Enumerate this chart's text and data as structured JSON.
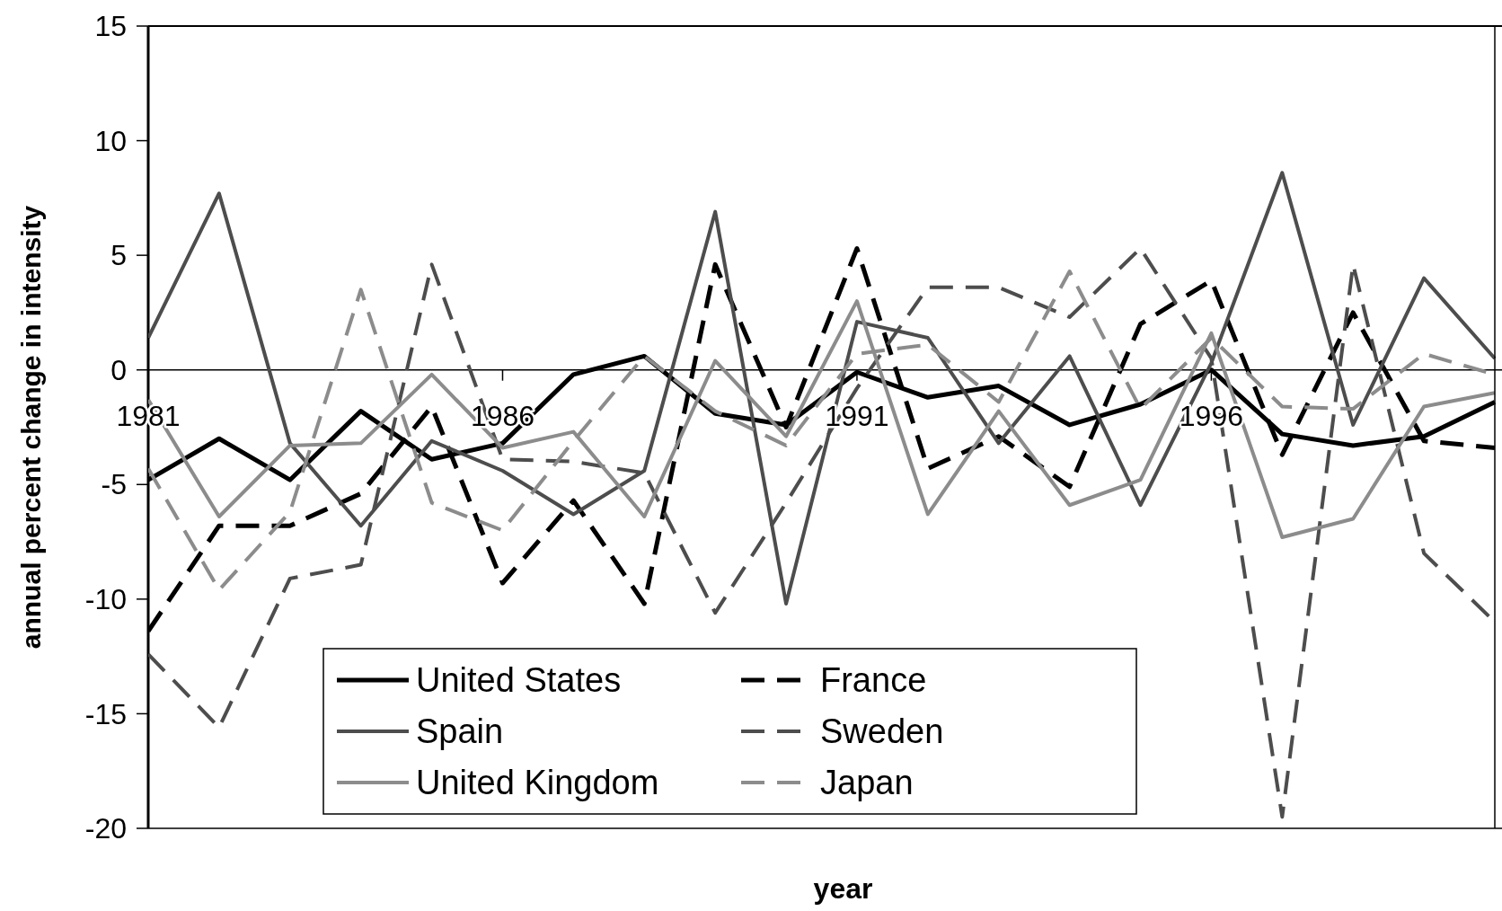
{
  "chart_data": {
    "type": "line",
    "xlabel": "year",
    "ylabel": "annual percent change in intensity",
    "x": [
      1981,
      1982,
      1983,
      1984,
      1985,
      1986,
      1987,
      1988,
      1989,
      1990,
      1991,
      1992,
      1993,
      1994,
      1995,
      1996,
      1997,
      1998,
      1999,
      2000
    ],
    "xlim": [
      1981,
      2000
    ],
    "xticks": [
      1981,
      1986,
      1991,
      1996
    ],
    "ylim": [
      -20,
      15
    ],
    "yticks": [
      -20,
      -15,
      -10,
      -5,
      0,
      5,
      10,
      15
    ],
    "grid": false,
    "legend": "bottom",
    "series": [
      {
        "name": "United States",
        "color": "#000000",
        "line_style": "solid",
        "values": [
          -4.8,
          -3.0,
          -4.8,
          -1.8,
          -3.9,
          -3.2,
          -0.2,
          0.6,
          -1.9,
          -2.4,
          -0.1,
          -1.2,
          -0.7,
          -2.4,
          -1.5,
          0.0,
          -2.8,
          -3.3,
          -2.9,
          -1.4
        ]
      },
      {
        "name": "France",
        "color": "#000000",
        "line_style": "dashed",
        "values": [
          -11.4,
          -6.8,
          -6.8,
          -5.4,
          -1.6,
          -9.3,
          -5.7,
          -10.2,
          4.6,
          -2.5,
          5.3,
          -4.3,
          -2.9,
          -5.1,
          2.0,
          3.9,
          -3.7,
          2.5,
          -3.1,
          -3.4
        ]
      },
      {
        "name": "Spain",
        "color": "#4d4d4d",
        "line_style": "solid",
        "values": [
          1.4,
          7.7,
          -3.2,
          -6.8,
          -3.1,
          -4.4,
          -6.3,
          -4.4,
          6.9,
          -10.2,
          2.1,
          1.4,
          -3.2,
          0.6,
          -5.9,
          0.3,
          8.6,
          -2.4,
          4.0,
          0.5
        ]
      },
      {
        "name": "Sweden",
        "color": "#4d4d4d",
        "line_style": "dashed",
        "values": [
          -12.4,
          -15.6,
          -9.1,
          -8.5,
          4.6,
          -3.9,
          -4.0,
          -4.5,
          -10.6,
          -5.8,
          -0.8,
          3.6,
          3.6,
          2.3,
          5.3,
          0.5,
          -19.5,
          4.6,
          -8.0,
          -11.0
        ]
      },
      {
        "name": "United Kingdom",
        "color": "#8c8c8c",
        "line_style": "solid",
        "values": [
          -1.3,
          -6.4,
          -3.3,
          -3.2,
          -0.2,
          -3.4,
          -2.7,
          -6.4,
          0.4,
          -2.9,
          3.0,
          -6.3,
          -1.8,
          -5.9,
          -4.8,
          1.6,
          -7.3,
          -6.5,
          -1.6,
          -1.0
        ]
      },
      {
        "name": "Japan",
        "color": "#8c8c8c",
        "line_style": "dashed",
        "values": [
          -4.3,
          -9.6,
          -6.2,
          3.5,
          -5.8,
          -7.0,
          -3.1,
          0.6,
          -1.8,
          -3.3,
          0.7,
          1.1,
          -1.4,
          4.3,
          -1.7,
          1.4,
          -1.6,
          -1.7,
          0.7,
          -0.2
        ]
      }
    ]
  }
}
